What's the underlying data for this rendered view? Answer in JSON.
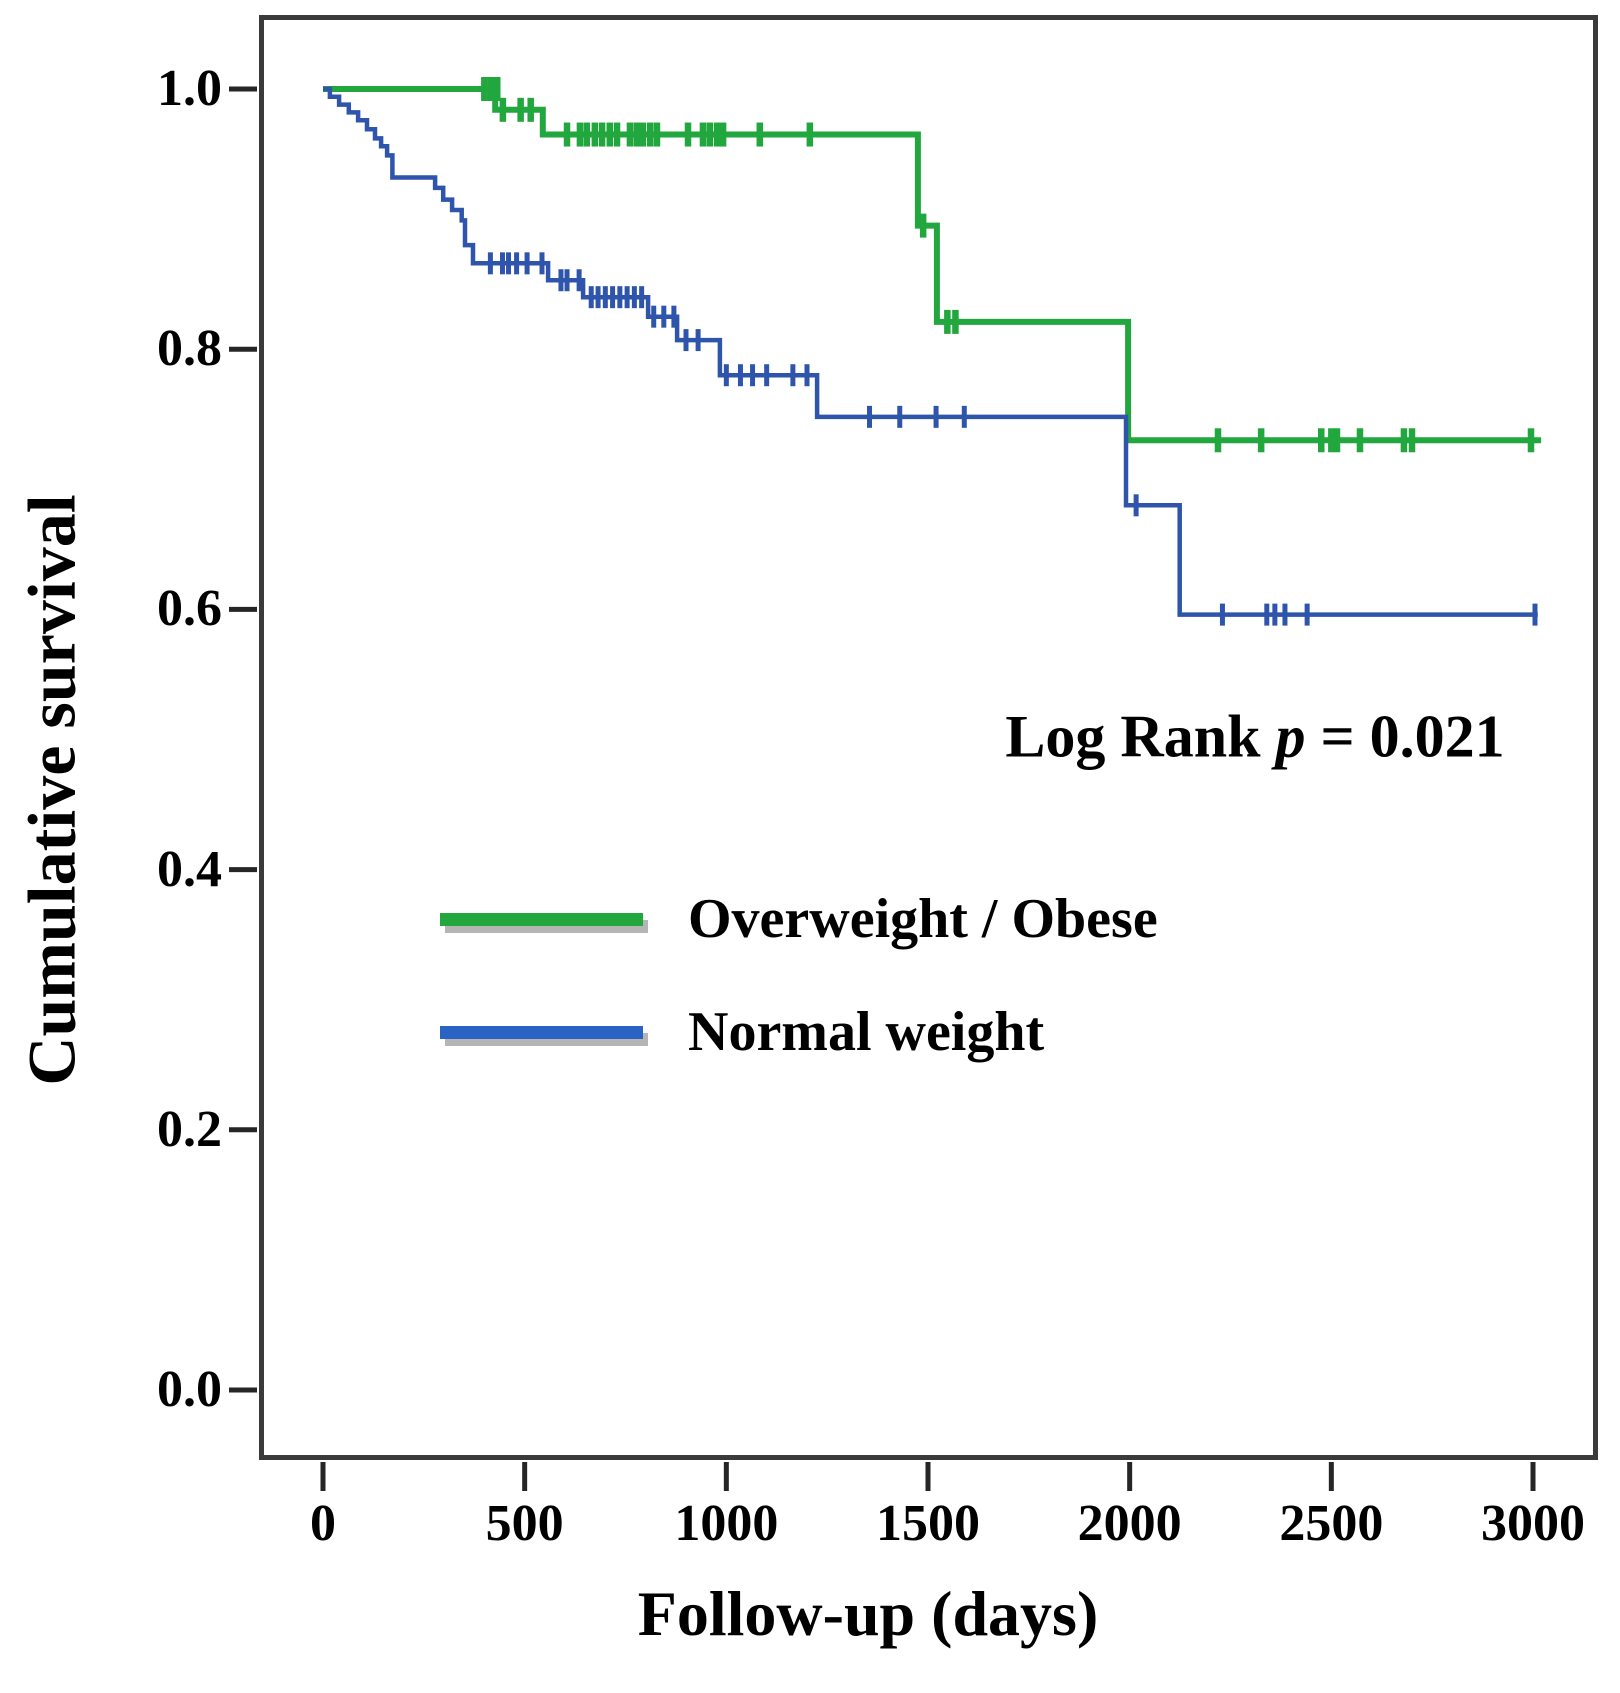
{
  "figure": {
    "y_axis_title": "Cumulative survival",
    "x_axis_title": "Follow-up (days)",
    "annotation": {
      "prefix": "Log Rank ",
      "p": "p",
      "suffix": " = 0.021"
    }
  },
  "chart_data": {
    "type": "line",
    "subtype": "kaplan-meier-step",
    "title": "",
    "xlabel": "Follow-up (days)",
    "ylabel": "Cumulative survival",
    "xlim": [
      -150,
      3160
    ],
    "ylim": [
      -0.055,
      1.057
    ],
    "grid": false,
    "x_ticks": {
      "values": [
        0,
        500,
        1000,
        1500,
        2000,
        2500,
        3000
      ],
      "labels": [
        "0",
        "500",
        "1000",
        "1500",
        "2000",
        "2500",
        "3000"
      ]
    },
    "y_ticks": {
      "values": [
        1.0,
        0.8,
        0.6,
        0.4,
        0.2,
        0.0
      ],
      "labels": [
        "1.0",
        "0.8",
        "0.6",
        "0.4",
        "0.2",
        "0.0"
      ]
    },
    "annotation_text": "Log Rank p = 0.021",
    "legend_position": "lower-left-inside",
    "colors": {
      "overweight_obese": "#22a63e",
      "normal_weight": "#2e54ab",
      "legend_blue": "#2b63c5",
      "legend_shadow": "#b5b5b5",
      "axis": "#262626",
      "border": "#3a3a3a"
    },
    "series": [
      {
        "name": "Overweight / Obese",
        "color": "#22a63e",
        "end_day": 3020,
        "steps": [
          [
            0,
            1.0
          ],
          [
            427,
            0.984
          ],
          [
            545,
            0.965
          ],
          [
            1475,
            0.895
          ],
          [
            1522,
            0.821
          ],
          [
            1996,
            0.73
          ]
        ],
        "censors": [
          [
            400,
            1.0
          ],
          [
            416,
            1.0
          ],
          [
            432,
            1.0
          ],
          [
            446,
            0.984
          ],
          [
            490,
            0.984
          ],
          [
            515,
            0.984
          ],
          [
            605,
            0.965
          ],
          [
            637,
            0.965
          ],
          [
            654,
            0.965
          ],
          [
            674,
            0.965
          ],
          [
            692,
            0.965
          ],
          [
            711,
            0.965
          ],
          [
            729,
            0.965
          ],
          [
            761,
            0.965
          ],
          [
            778,
            0.965
          ],
          [
            793,
            0.965
          ],
          [
            811,
            0.965
          ],
          [
            828,
            0.965
          ],
          [
            905,
            0.965
          ],
          [
            942,
            0.965
          ],
          [
            959,
            0.965
          ],
          [
            977,
            0.965
          ],
          [
            992,
            0.965
          ],
          [
            1083,
            0.965
          ],
          [
            1207,
            0.965
          ],
          [
            1488,
            0.895
          ],
          [
            1548,
            0.821
          ],
          [
            1568,
            0.821
          ],
          [
            2219,
            0.73
          ],
          [
            2326,
            0.73
          ],
          [
            2475,
            0.73
          ],
          [
            2500,
            0.73
          ],
          [
            2514,
            0.73
          ],
          [
            2571,
            0.73
          ],
          [
            2680,
            0.73
          ],
          [
            2700,
            0.73
          ],
          [
            2995,
            0.73
          ]
        ]
      },
      {
        "name": "Normal weight",
        "color": "#2e54ab",
        "end_day": 3012,
        "steps": [
          [
            0,
            1.0
          ],
          [
            17,
            0.994
          ],
          [
            40,
            0.988
          ],
          [
            64,
            0.982
          ],
          [
            87,
            0.976
          ],
          [
            109,
            0.969
          ],
          [
            129,
            0.962
          ],
          [
            144,
            0.956
          ],
          [
            159,
            0.949
          ],
          [
            172,
            0.932
          ],
          [
            278,
            0.924
          ],
          [
            298,
            0.915
          ],
          [
            320,
            0.907
          ],
          [
            344,
            0.899
          ],
          [
            352,
            0.88
          ],
          [
            372,
            0.866
          ],
          [
            558,
            0.853
          ],
          [
            645,
            0.84
          ],
          [
            806,
            0.825
          ],
          [
            878,
            0.807
          ],
          [
            984,
            0.78
          ],
          [
            1225,
            0.748
          ],
          [
            1991,
            0.68
          ],
          [
            2124,
            0.596
          ]
        ],
        "censors": [
          [
            415,
            0.866
          ],
          [
            445,
            0.866
          ],
          [
            460,
            0.866
          ],
          [
            480,
            0.866
          ],
          [
            506,
            0.866
          ],
          [
            543,
            0.866
          ],
          [
            590,
            0.853
          ],
          [
            605,
            0.853
          ],
          [
            635,
            0.853
          ],
          [
            665,
            0.84
          ],
          [
            682,
            0.84
          ],
          [
            700,
            0.84
          ],
          [
            718,
            0.84
          ],
          [
            736,
            0.84
          ],
          [
            754,
            0.84
          ],
          [
            772,
            0.84
          ],
          [
            790,
            0.84
          ],
          [
            820,
            0.825
          ],
          [
            845,
            0.825
          ],
          [
            870,
            0.825
          ],
          [
            900,
            0.807
          ],
          [
            930,
            0.807
          ],
          [
            1000,
            0.78
          ],
          [
            1035,
            0.78
          ],
          [
            1065,
            0.78
          ],
          [
            1100,
            0.78
          ],
          [
            1165,
            0.78
          ],
          [
            1200,
            0.78
          ],
          [
            1355,
            0.748
          ],
          [
            1430,
            0.748
          ],
          [
            1520,
            0.748
          ],
          [
            1590,
            0.748
          ],
          [
            2016,
            0.68
          ],
          [
            2230,
            0.596
          ],
          [
            2340,
            0.596
          ],
          [
            2360,
            0.596
          ],
          [
            2385,
            0.596
          ],
          [
            2440,
            0.596
          ],
          [
            3005,
            0.596
          ]
        ]
      }
    ],
    "legend": [
      {
        "label": "Overweight / Obese",
        "color": "#22a63e"
      },
      {
        "label": "Normal weight",
        "color": "#2b63c5"
      }
    ]
  }
}
